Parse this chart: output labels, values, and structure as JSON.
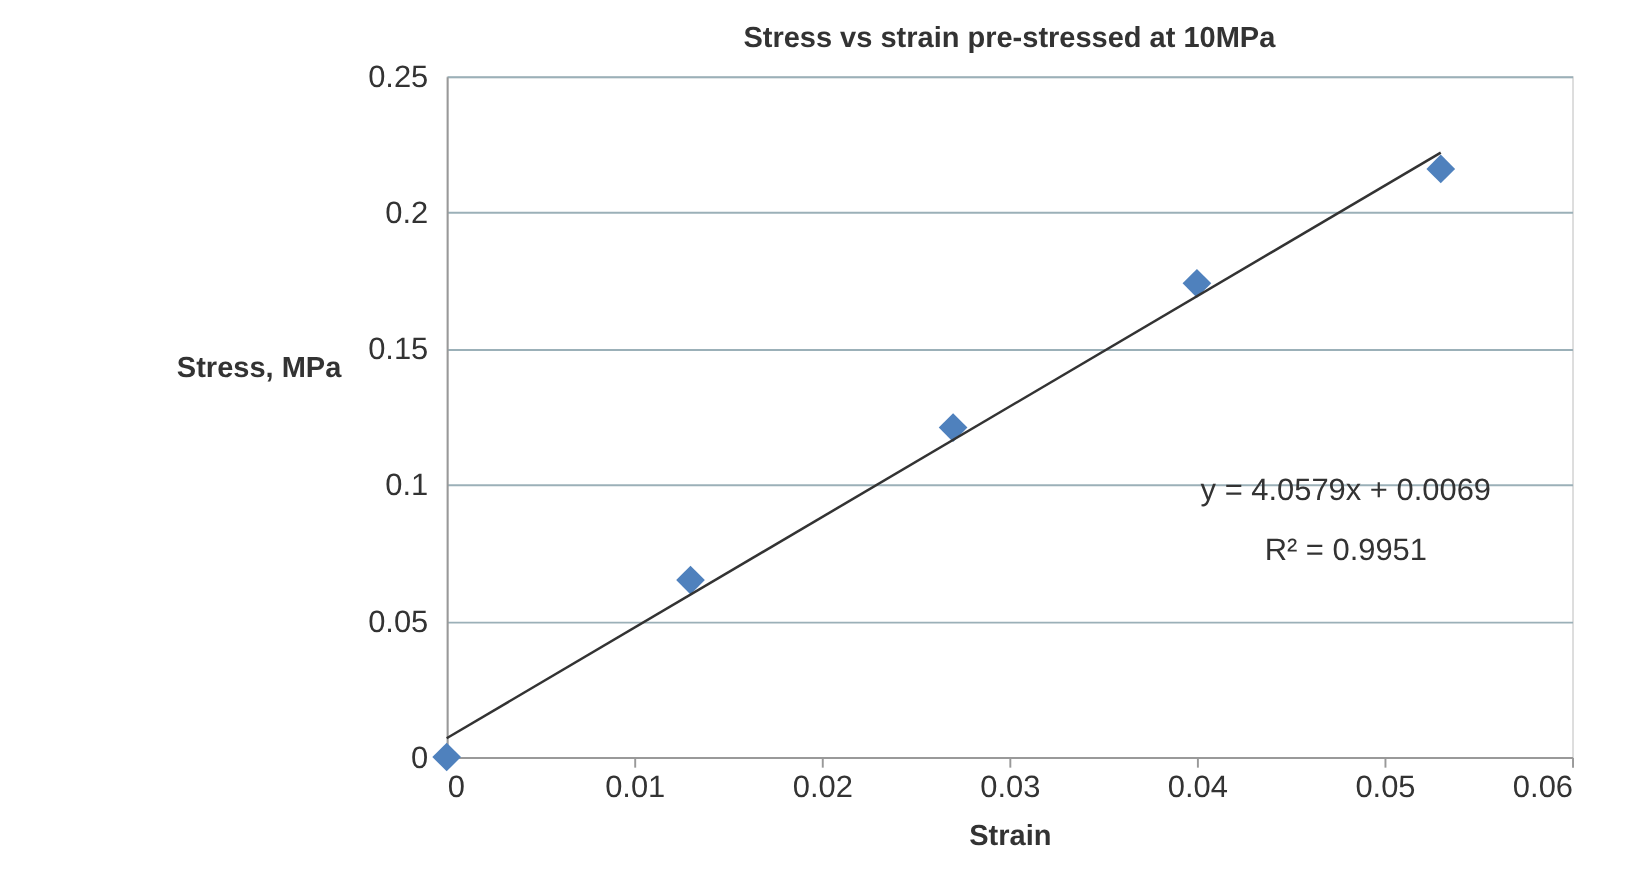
{
  "chart_data": {
    "type": "scatter",
    "title": "Stress vs strain  pre-stressed at 10MPa",
    "xlabel": "Strain",
    "ylabel": "Stress, MPa",
    "series": [
      {
        "color": "#4f81bd",
        "marker": "diamond",
        "x": [
          0,
          0.013,
          0.027,
          0.04,
          0.053
        ],
        "values": [
          0,
          0.065,
          0.121,
          0.174,
          0.216
        ]
      },
      {
        "type": "line",
        "color": "#333333",
        "marker": "none",
        "line_style": "solid",
        "x": [
          0,
          0.053
        ],
        "values": [
          0.0069,
          0.222
        ]
      }
    ],
    "annotations": [
      "y = 4.0579x + 0.0069",
      "R² = 0.9951"
    ],
    "xlim": [
      0,
      0.06
    ],
    "xticks": [
      0,
      0.01,
      0.02,
      0.03,
      0.04,
      0.05,
      0.06
    ],
    "ylim": [
      0,
      0.25
    ],
    "yticks": [
      0,
      0.05,
      0.1,
      0.15,
      0.2,
      0.25
    ],
    "grid": "y"
  }
}
